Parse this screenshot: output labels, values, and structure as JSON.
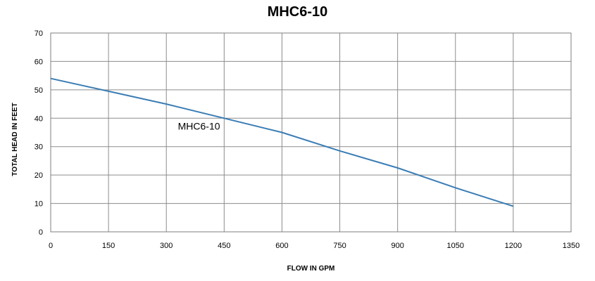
{
  "chart_data": {
    "type": "line",
    "title": "MHC6-10",
    "xlabel": "FLOW IN GPM",
    "ylabel": "TOTAL HEAD IN FEET",
    "xlim": [
      0,
      1350
    ],
    "ylim": [
      0,
      70
    ],
    "xticks": [
      0,
      150,
      300,
      450,
      600,
      750,
      900,
      1050,
      1200,
      1350
    ],
    "yticks": [
      0,
      10,
      20,
      30,
      40,
      50,
      60,
      70
    ],
    "grid": true,
    "series_color": "#3A7DB5",
    "series": [
      {
        "name": "MHC6-10",
        "x": [
          0,
          150,
          300,
          450,
          600,
          750,
          900,
          1050,
          1200
        ],
        "y": [
          54,
          49.5,
          45,
          40,
          35,
          28.5,
          22.5,
          15.5,
          9
        ]
      }
    ]
  }
}
